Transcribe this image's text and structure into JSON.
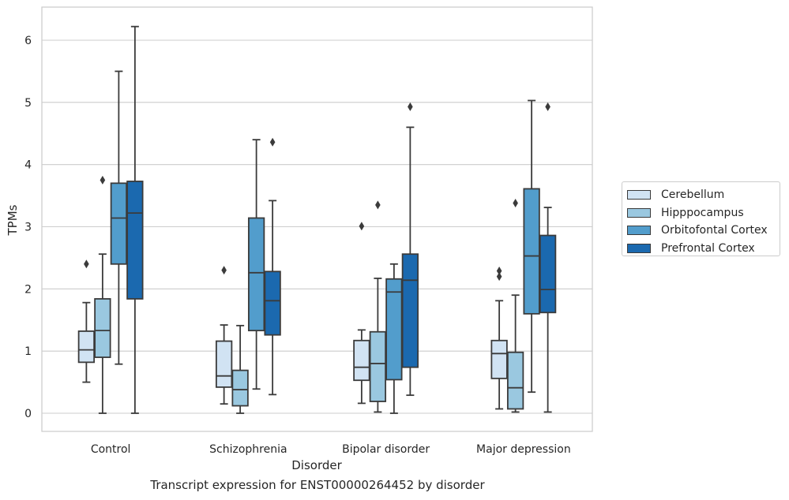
{
  "caption": "Transcript expression for ENST00000264452 by disorder",
  "chart_data": {
    "type": "box",
    "xlabel": "Disorder",
    "ylabel": "TPMs",
    "ylim": [
      -0.3,
      6.55
    ],
    "yticks": [
      "0",
      "1",
      "2",
      "3",
      "4",
      "5",
      "6"
    ],
    "grid": "y",
    "legend_position": "right",
    "categories": [
      "Control",
      "Schizophrenia",
      "Bipolar disorder",
      "Major depression"
    ],
    "series": [
      {
        "name": "Cerebellum",
        "color": "#d1e3f3",
        "boxes": [
          {
            "whislo": 0.5,
            "q1": 0.82,
            "med": 1.02,
            "q3": 1.32,
            "whishi": 1.78,
            "fliers": [
              2.4
            ]
          },
          {
            "whislo": 0.15,
            "q1": 0.42,
            "med": 0.6,
            "q3": 1.16,
            "whishi": 1.42,
            "fliers": [
              2.3
            ]
          },
          {
            "whislo": 0.16,
            "q1": 0.53,
            "med": 0.74,
            "q3": 1.17,
            "whishi": 1.34,
            "fliers": [
              3.01
            ]
          },
          {
            "whislo": 0.07,
            "q1": 0.56,
            "med": 0.96,
            "q3": 1.17,
            "whishi": 1.81,
            "fliers": [
              2.2,
              2.29
            ]
          }
        ]
      },
      {
        "name": "Hipppocampus",
        "color": "#9ac8e0",
        "boxes": [
          {
            "whislo": 0.0,
            "q1": 0.9,
            "med": 1.33,
            "q3": 1.84,
            "whishi": 2.56,
            "fliers": [
              3.75
            ]
          },
          {
            "whislo": 0.0,
            "q1": 0.12,
            "med": 0.38,
            "q3": 0.69,
            "whishi": 1.41,
            "fliers": []
          },
          {
            "whislo": 0.02,
            "q1": 0.19,
            "med": 0.8,
            "q3": 1.31,
            "whishi": 2.17,
            "fliers": [
              3.35
            ]
          },
          {
            "whislo": 0.02,
            "q1": 0.07,
            "med": 0.41,
            "q3": 0.98,
            "whishi": 1.9,
            "fliers": [
              3.38
            ]
          }
        ]
      },
      {
        "name": "Orbitofontal Cortex",
        "color": "#529dcc",
        "boxes": [
          {
            "whislo": 0.79,
            "q1": 2.4,
            "med": 3.14,
            "q3": 3.7,
            "whishi": 5.5,
            "fliers": []
          },
          {
            "whislo": 0.39,
            "q1": 1.33,
            "med": 2.26,
            "q3": 3.14,
            "whishi": 4.4,
            "fliers": []
          },
          {
            "whislo": 0.0,
            "q1": 0.54,
            "med": 1.95,
            "q3": 2.16,
            "whishi": 2.4,
            "fliers": []
          },
          {
            "whislo": 0.34,
            "q1": 1.6,
            "med": 2.53,
            "q3": 3.61,
            "whishi": 5.03,
            "fliers": []
          }
        ]
      },
      {
        "name": "Prefrontal Cortex",
        "color": "#1b69af",
        "boxes": [
          {
            "whislo": 0.0,
            "q1": 1.84,
            "med": 3.22,
            "q3": 3.73,
            "whishi": 6.22,
            "fliers": []
          },
          {
            "whislo": 0.3,
            "q1": 1.26,
            "med": 1.81,
            "q3": 2.28,
            "whishi": 3.42,
            "fliers": [
              4.36
            ]
          },
          {
            "whislo": 0.29,
            "q1": 0.74,
            "med": 2.14,
            "q3": 2.56,
            "whishi": 4.6,
            "fliers": [
              4.93
            ]
          },
          {
            "whislo": 0.02,
            "q1": 1.62,
            "med": 1.99,
            "q3": 2.86,
            "whishi": 3.31,
            "fliers": [
              4.93
            ]
          }
        ]
      }
    ]
  }
}
